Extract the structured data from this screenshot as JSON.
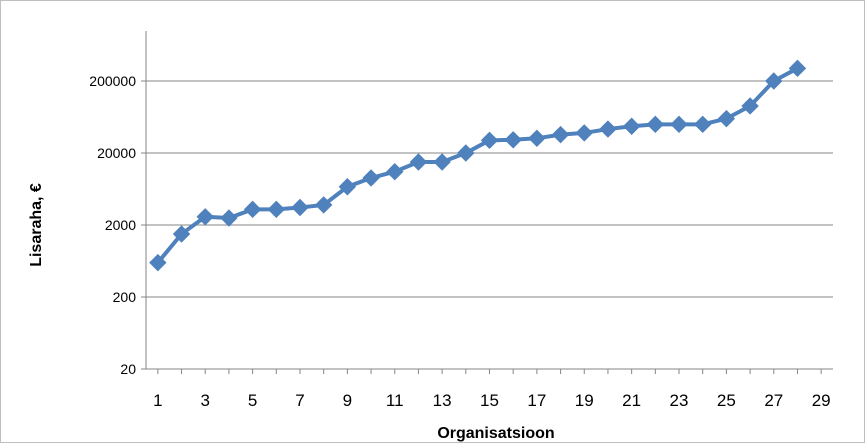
{
  "chart_data": {
    "type": "line",
    "xlabel": "Organisatsioon",
    "ylabel": "Lisaraha, €",
    "y_scale": "log",
    "ylim": [
      20,
      400000
    ],
    "xlim": [
      0.5,
      29.5
    ],
    "y_ticks": [
      20,
      200,
      2000,
      20000,
      200000
    ],
    "y_tick_labels": [
      "20",
      "200",
      "2000",
      "20000",
      "200000"
    ],
    "x_ticks": [
      1,
      3,
      5,
      7,
      9,
      11,
      13,
      15,
      17,
      19,
      21,
      23,
      25,
      27,
      29
    ],
    "x_tick_labels": [
      "1",
      "3",
      "5",
      "7",
      "9",
      "11",
      "13",
      "15",
      "17",
      "19",
      "21",
      "23",
      "25",
      "27",
      "29"
    ],
    "grid": "horizontal",
    "legend": "none",
    "series": [
      {
        "color": "#4f81bd",
        "marker": "diamond",
        "x": [
          1,
          2,
          3,
          4,
          5,
          6,
          7,
          8,
          9,
          10,
          11,
          12,
          13,
          14,
          15,
          16,
          17,
          18,
          19,
          20,
          21,
          22,
          23,
          24,
          25,
          26,
          27,
          28
        ],
        "values": [
          600,
          1500,
          2600,
          2500,
          3300,
          3300,
          3500,
          3800,
          6800,
          9000,
          11000,
          15000,
          15000,
          20000,
          30000,
          30500,
          32000,
          36000,
          38000,
          43000,
          47000,
          50000,
          50000,
          50000,
          60000,
          90000,
          200000,
          300000
        ]
      }
    ]
  }
}
